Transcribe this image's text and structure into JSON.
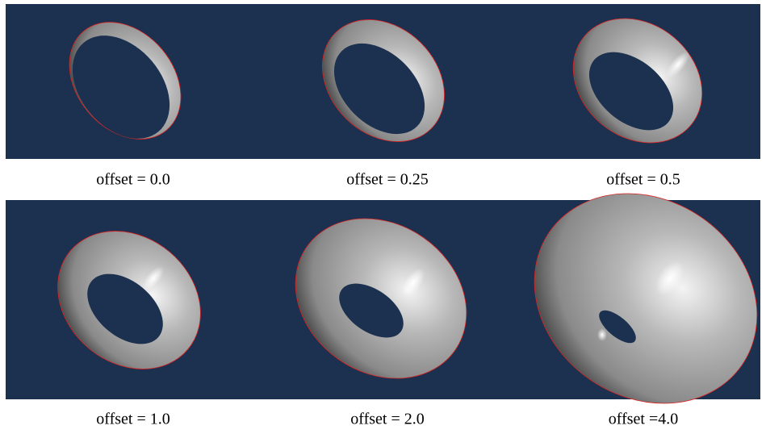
{
  "panels": [
    {
      "caption": "offset = 0.0"
    },
    {
      "caption": "offset = 0.25"
    },
    {
      "caption": "offset = 0.5"
    },
    {
      "caption": "offset = 1.0"
    },
    {
      "caption": "offset = 2.0"
    },
    {
      "caption": "offset =4.0"
    }
  ]
}
